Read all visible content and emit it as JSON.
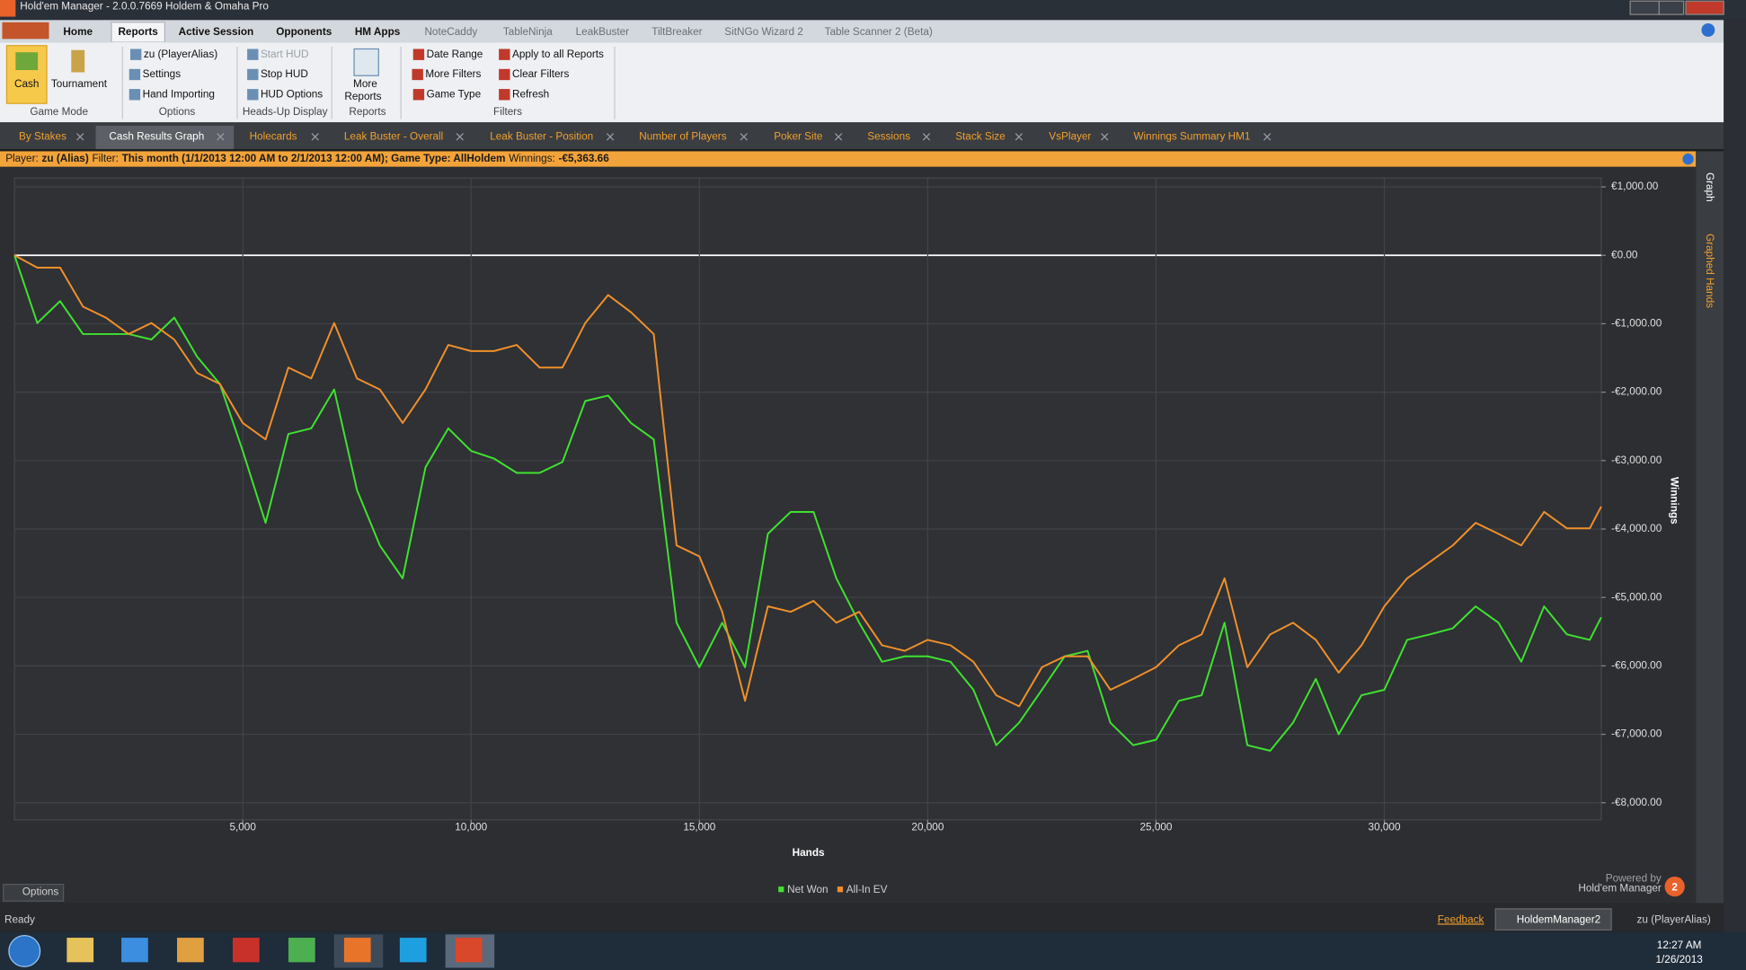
{
  "window": {
    "title": "Hold'em Manager - 2.0.0.7669 Holdem & Omaha Pro"
  },
  "ribbon": {
    "tabs": [
      "Home",
      "Reports",
      "Active Session",
      "Opponents",
      "HM Apps",
      "NoteCaddy",
      "TableNinja",
      "LeakBuster",
      "TiltBreaker",
      "SitNGo Wizard 2",
      "Table Scanner 2 (Beta)"
    ],
    "groups": [
      {
        "label": "Game Mode",
        "items": [
          "Cash",
          "Tournament"
        ]
      },
      {
        "label": "Options",
        "items": [
          "zu (PlayerAlias)",
          "Settings",
          "Hand Importing"
        ]
      },
      {
        "label": "Heads-Up Display",
        "items": [
          "Start HUD",
          "Stop HUD",
          "HUD Options"
        ]
      },
      {
        "label": "Reports",
        "items": [
          "More",
          "Reports"
        ]
      },
      {
        "label": "Filters",
        "items": [
          "Date Range",
          "More Filters",
          "Game Type",
          "Apply to all Reports",
          "Clear Filters",
          "Refresh"
        ]
      }
    ]
  },
  "doc_tabs": [
    "By Stakes",
    "Cash Results Graph",
    "Holecards",
    "Leak Buster - Overall",
    "Leak Buster - Position",
    "Number of Players",
    "Poker Site",
    "Sessions",
    "Stack Size",
    "VsPlayer",
    "Winnings Summary HM1"
  ],
  "filter_bar": [
    {
      "text": "Player:",
      "bold": false
    },
    {
      "text": "zu (Alias)",
      "bold": true
    },
    {
      "text": "Filter:",
      "bold": false
    },
    {
      "text": "This month (1/1/2013 12:00 AM to 2/1/2013 12:00 AM); Game Type: AllHoldem",
      "bold": true
    },
    {
      "text": "Winnings:",
      "bold": false
    },
    {
      "text": "-€5,363.66",
      "bold": true
    }
  ],
  "side_panel": [
    "Graph",
    "Graphed Hands"
  ],
  "chart_data": {
    "type": "line",
    "x_label": "Hands",
    "y_label": "Winnings",
    "x": [
      0,
      500,
      1000,
      1500,
      2000,
      2500,
      3000,
      3500,
      4000,
      4500,
      5000,
      5500,
      6000,
      6500,
      7000,
      7500,
      8000,
      8500,
      9000,
      9500,
      10000,
      10500,
      11000,
      11500,
      12000,
      12500,
      13000,
      13500,
      14000,
      14500,
      15000,
      15500,
      16000,
      16500,
      17000,
      17500,
      18000,
      18500,
      19000,
      19500,
      20000,
      20500,
      21000,
      21500,
      22000,
      22500,
      23000,
      23500,
      24000,
      24500,
      25000,
      25500,
      26000,
      26500,
      27000,
      27500,
      28000,
      28500,
      29000,
      29500,
      30000,
      30500,
      31000,
      31500,
      32000,
      32500,
      33000,
      33500,
      34000,
      34500,
      34750
    ],
    "series": [
      {
        "name": "Net Won",
        "color": "#3fe22f",
        "values": [
          0,
          -990,
          -670,
          -1150,
          -1150,
          -1150,
          -1230,
          -910,
          -1480,
          -1880,
          -2860,
          -3910,
          -2610,
          -2530,
          -1960,
          -3430,
          -4240,
          -4720,
          -3100,
          -2530,
          -2860,
          -2970,
          -3180,
          -3180,
          -3020,
          -2130,
          -2050,
          -2450,
          -2690,
          -5370,
          -6020,
          -5370,
          -6020,
          -4070,
          -3750,
          -3750,
          -4720,
          -5370,
          -5940,
          -5860,
          -5860,
          -5940,
          -6350,
          -7160,
          -6830,
          -6350,
          -5860,
          -5780,
          -6830,
          -7160,
          -7080,
          -6510,
          -6430,
          -5370,
          -7160,
          -7240,
          -6830,
          -6190,
          -7000,
          -6430,
          -6350,
          -5620,
          -5540,
          -5450,
          -5130,
          -5370,
          -5940,
          -5130,
          -5540,
          -5620,
          -5290
        ]
      },
      {
        "name": "All-In EV",
        "color": "#f0902a",
        "values": [
          0,
          -180,
          -180,
          -750,
          -910,
          -1150,
          -990,
          -1230,
          -1720,
          -1880,
          -2450,
          -2690,
          -1640,
          -1800,
          -990,
          -1800,
          -1960,
          -2450,
          -1960,
          -1310,
          -1400,
          -1400,
          -1310,
          -1640,
          -1640,
          -990,
          -580,
          -830,
          -1150,
          -4240,
          -4400,
          -5210,
          -6510,
          -5130,
          -5210,
          -5050,
          -5370,
          -5210,
          -5700,
          -5780,
          -5620,
          -5700,
          -5940,
          -6430,
          -6590,
          -6020,
          -5860,
          -5860,
          -6350,
          -6190,
          -6020,
          -5700,
          -5540,
          -4720,
          -6020,
          -5540,
          -5370,
          -5620,
          -6100,
          -5700,
          -5130,
          -4720,
          -4480,
          -4240,
          -3910,
          -4070,
          -4240,
          -3750,
          -3990,
          -3990,
          -3670
        ]
      }
    ],
    "xlim": [
      0,
      34750
    ],
    "ylim": [
      -8250,
      1130
    ],
    "xticks": [
      {
        "value": 5000,
        "label": "5,000"
      },
      {
        "value": 10000,
        "label": "10,000"
      },
      {
        "value": 15000,
        "label": "15,000"
      },
      {
        "value": 20000,
        "label": "20,000"
      },
      {
        "value": 25000,
        "label": "25,000"
      },
      {
        "value": 30000,
        "label": "30,000"
      }
    ],
    "yticks": [
      {
        "value": 1000,
        "label": "€1,000.00"
      },
      {
        "value": 0,
        "label": "€0.00"
      },
      {
        "value": -1000,
        "label": "-€1,000.00"
      },
      {
        "value": -2000,
        "label": "-€2,000.00"
      },
      {
        "value": -3000,
        "label": "-€3,000.00"
      },
      {
        "value": -4000,
        "label": "-€4,000.00"
      },
      {
        "value": -5000,
        "label": "-€5,000.00"
      },
      {
        "value": -6000,
        "label": "-€6,000.00"
      },
      {
        "value": -7000,
        "label": "-€7,000.00"
      },
      {
        "value": -8000,
        "label": "-€8,000.00"
      }
    ],
    "grid": true,
    "zero_line_color": "#ffffff"
  },
  "options_button": "Options",
  "powered_by": "Powered by",
  "brand": "Hold'em Manager",
  "brand_badge": "2",
  "status": {
    "text": "Ready",
    "feedback": "Feedback",
    "window": "HoldemManager2",
    "player": "zu (PlayerAlias)"
  },
  "taskbar": {
    "time": "12:27 AM",
    "date": "1/26/2013"
  }
}
